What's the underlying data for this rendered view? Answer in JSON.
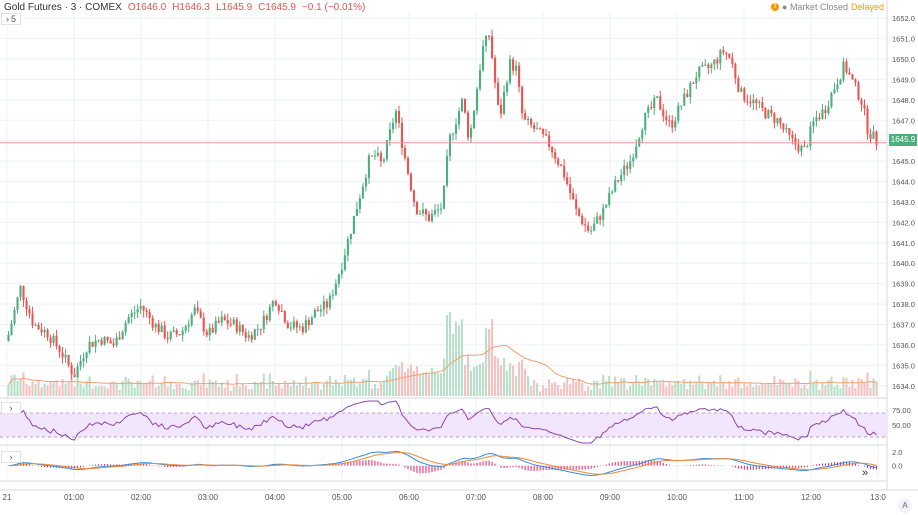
{
  "header": {
    "symbol": "Gold Futures · 3 · COMEX",
    "open": "O1646.0",
    "high": "H1646.3",
    "low": "L1645.9",
    "close": "C1645.9",
    "change": "−0.1 (−0.01%)"
  },
  "status": {
    "icon_char": "!",
    "market": "Market Closed",
    "delayed": "Delayed"
  },
  "pane_toggles": {
    "main": "5",
    "rsi": "",
    "macd": ""
  },
  "price_tag": "1645.9",
  "corner_label": "A",
  "scroll_glyph": "»",
  "chart_data": {
    "type": "candlestick",
    "price_axis": {
      "ylim": [
        1633.5,
        1652.3
      ],
      "ticks": [
        "1652.0",
        "1651.0",
        "1650.0",
        "1649.0",
        "1648.0",
        "1647.0",
        "1646.0",
        "1645.0",
        "1644.0",
        "1643.0",
        "1642.0",
        "1641.0",
        "1640.0",
        "1639.0",
        "1638.0",
        "1637.0",
        "1636.0",
        "1635.0",
        "1634.0"
      ]
    },
    "time_axis": {
      "xlim": [
        0,
        13
      ],
      "ticks": [
        "21",
        "01:00",
        "02:00",
        "03:00",
        "04:00",
        "05:00",
        "06:00",
        "07:00",
        "08:00",
        "09:00",
        "10:00",
        "11:00",
        "12:00",
        "13:0"
      ]
    },
    "last_price": 1645.9,
    "close_path": [
      [
        0.0,
        1636.2
      ],
      [
        0.2,
        1638.8
      ],
      [
        0.4,
        1637.0
      ],
      [
        0.6,
        1636.6
      ],
      [
        0.8,
        1635.7
      ],
      [
        1.0,
        1634.5
      ],
      [
        1.2,
        1636.0
      ],
      [
        1.4,
        1636.3
      ],
      [
        1.6,
        1636.0
      ],
      [
        1.8,
        1637.3
      ],
      [
        2.0,
        1637.9
      ],
      [
        2.2,
        1637.0
      ],
      [
        2.4,
        1636.4
      ],
      [
        2.6,
        1636.6
      ],
      [
        2.8,
        1637.7
      ],
      [
        3.0,
        1636.5
      ],
      [
        3.2,
        1637.2
      ],
      [
        3.4,
        1637.0
      ],
      [
        3.6,
        1636.4
      ],
      [
        3.8,
        1637.0
      ],
      [
        4.0,
        1638.3
      ],
      [
        4.2,
        1637.0
      ],
      [
        4.4,
        1636.8
      ],
      [
        4.6,
        1637.6
      ],
      [
        4.8,
        1638.0
      ],
      [
        5.0,
        1640.0
      ],
      [
        5.2,
        1642.5
      ],
      [
        5.4,
        1645.0
      ],
      [
        5.5,
        1645.3
      ],
      [
        5.6,
        1644.8
      ],
      [
        5.8,
        1647.5
      ],
      [
        5.95,
        1645.0
      ],
      [
        6.1,
        1642.7
      ],
      [
        6.3,
        1642.2
      ],
      [
        6.5,
        1642.8
      ],
      [
        6.6,
        1646.0
      ],
      [
        6.8,
        1648.0
      ],
      [
        6.9,
        1646.0
      ],
      [
        7.1,
        1650.5
      ],
      [
        7.2,
        1651.2
      ],
      [
        7.35,
        1647.0
      ],
      [
        7.5,
        1649.8
      ],
      [
        7.6,
        1649.5
      ],
      [
        7.7,
        1647.0
      ],
      [
        7.9,
        1646.5
      ],
      [
        8.1,
        1645.8
      ],
      [
        8.3,
        1644.5
      ],
      [
        8.5,
        1642.5
      ],
      [
        8.7,
        1641.5
      ],
      [
        8.9,
        1642.6
      ],
      [
        9.1,
        1644.0
      ],
      [
        9.3,
        1645.0
      ],
      [
        9.5,
        1647.0
      ],
      [
        9.7,
        1648.0
      ],
      [
        9.9,
        1646.7
      ],
      [
        10.1,
        1648.0
      ],
      [
        10.3,
        1649.3
      ],
      [
        10.5,
        1649.6
      ],
      [
        10.7,
        1650.4
      ],
      [
        10.8,
        1650.0
      ],
      [
        10.95,
        1648.3
      ],
      [
        11.1,
        1648.0
      ],
      [
        11.3,
        1647.4
      ],
      [
        11.5,
        1647.0
      ],
      [
        11.7,
        1646.0
      ],
      [
        11.9,
        1645.5
      ],
      [
        12.05,
        1647.0
      ],
      [
        12.2,
        1647.5
      ],
      [
        12.4,
        1649.0
      ],
      [
        12.5,
        1649.7
      ],
      [
        12.6,
        1649.0
      ],
      [
        12.75,
        1648.0
      ],
      [
        12.85,
        1646.5
      ],
      [
        13.0,
        1645.9
      ]
    ],
    "volume_spike_times": [
      6.75,
      7.2,
      6.6
    ],
    "rsi": {
      "levels": [
        "75.00",
        "50.00"
      ],
      "ylim": [
        20,
        90
      ],
      "upper_band": 70,
      "lower_band": 30
    },
    "macd": {
      "levels": [
        "2.0",
        "0.0"
      ],
      "ylim": [
        -1.8,
        2.6
      ]
    },
    "colors": {
      "up": "#4caf7d",
      "down": "#ef5350",
      "volume_up": "#b7dfc9",
      "volume_down": "#f6c2c1",
      "volume_ma": "#f0a070",
      "rsi": "#8e44ad",
      "rsi_band": "#f1e6fb",
      "macd": "#2f8ee0",
      "signal": "#f08a3c",
      "hist": "#e91e63",
      "grid": "#eef0f3",
      "price_line": "#ef9a9a"
    }
  }
}
